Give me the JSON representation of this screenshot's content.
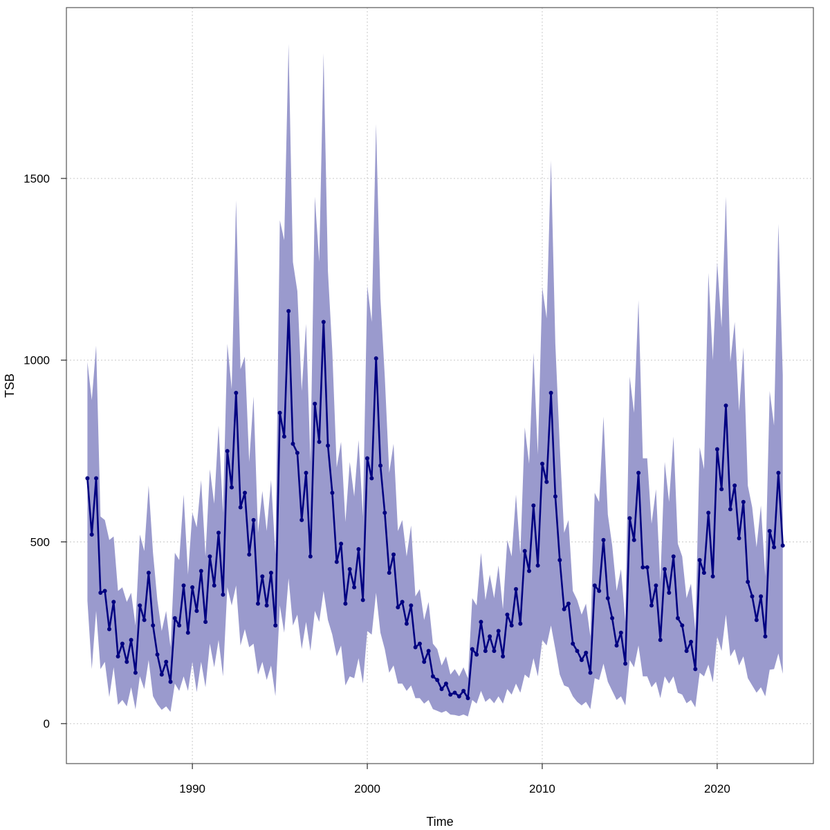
{
  "chart_data": {
    "type": "line",
    "title": "",
    "xlabel": "Time",
    "ylabel": "TSB",
    "xlim": [
      1982.8,
      2025.5
    ],
    "ylim": [
      -110,
      1970
    ],
    "x_ticks": [
      1990,
      2000,
      2010,
      2020
    ],
    "y_ticks": [
      0,
      500,
      1000,
      1500
    ],
    "x_tick_labels": [
      "1990",
      "2000",
      "2010",
      "2020"
    ],
    "y_tick_labels": [
      "0",
      "500",
      "1000",
      "1500"
    ],
    "grid": true,
    "legend": "none",
    "x_start": 1984.0,
    "x_step": 0.25,
    "colors": {
      "line": "#000080",
      "band": "#9a9acd",
      "grid": "#c8c8c8",
      "axis": "#000000",
      "frame": "#555555"
    },
    "series": [
      {
        "values": [
          675,
          520,
          675,
          360,
          365,
          260,
          335,
          185,
          220,
          170,
          230,
          140,
          325,
          285,
          415,
          270,
          190,
          135,
          170,
          115,
          290,
          270,
          380,
          250,
          375,
          310,
          420,
          280,
          460,
          380,
          525,
          355,
          750,
          650,
          910,
          595,
          635,
          465,
          560,
          330,
          405,
          325,
          415,
          270,
          855,
          790,
          1135,
          770,
          745,
          560,
          690,
          460,
          880,
          775,
          1105,
          765,
          635,
          445,
          495,
          330,
          425,
          375,
          480,
          340,
          730,
          675,
          1005,
          710,
          580,
          415,
          465,
          320,
          335,
          275,
          325,
          210,
          220,
          170,
          200,
          130,
          120,
          95,
          110,
          80,
          85,
          75,
          90,
          70,
          205,
          190,
          280,
          200,
          240,
          200,
          255,
          185,
          300,
          270,
          370,
          275,
          475,
          420,
          600,
          435,
          715,
          665,
          910,
          625,
          450,
          315,
          330,
          220,
          200,
          175,
          195,
          140,
          380,
          365,
          505,
          345,
          290,
          215,
          250,
          165,
          565,
          505,
          690,
          430,
          430,
          325,
          380,
          230,
          425,
          360,
          460,
          290,
          270,
          200,
          225,
          150,
          450,
          415,
          580,
          405,
          755,
          645,
          875,
          590,
          655,
          510,
          610,
          390,
          350,
          285,
          350,
          240,
          530,
          485,
          690,
          490
        ]
      }
    ],
    "band": {
      "upper": [
        995,
        890,
        1040,
        570,
        560,
        505,
        515,
        365,
        375,
        335,
        360,
        270,
        520,
        475,
        655,
        470,
        340,
        255,
        310,
        210,
        470,
        450,
        630,
        410,
        580,
        540,
        670,
        460,
        700,
        605,
        820,
        580,
        1045,
        920,
        1440,
        975,
        1010,
        720,
        900,
        525,
        640,
        530,
        670,
        465,
        1385,
        1330,
        1870,
        1270,
        1190,
        915,
        1100,
        720,
        1450,
        1270,
        1845,
        1245,
        1025,
        705,
        775,
        555,
        720,
        625,
        780,
        570,
        1205,
        1105,
        1650,
        1170,
        955,
        690,
        770,
        530,
        560,
        460,
        545,
        350,
        370,
        285,
        335,
        220,
        205,
        160,
        185,
        135,
        150,
        130,
        155,
        125,
        345,
        325,
        470,
        340,
        410,
        345,
        435,
        315,
        505,
        460,
        630,
        465,
        815,
        715,
        1020,
        740,
        1200,
        1115,
        1550,
        1045,
        765,
        525,
        560,
        365,
        340,
        300,
        330,
        240,
        635,
        610,
        845,
        575,
        490,
        365,
        425,
        280,
        955,
        855,
        1165,
        730,
        730,
        550,
        645,
        390,
        720,
        610,
        790,
        495,
        460,
        345,
        385,
        255,
        760,
        700,
        1240,
        1000,
        1270,
        1090,
        1450,
        995,
        1105,
        860,
        1035,
        655,
        595,
        485,
        600,
        405,
        915,
        820,
        1375,
        960
      ]
    }
  }
}
